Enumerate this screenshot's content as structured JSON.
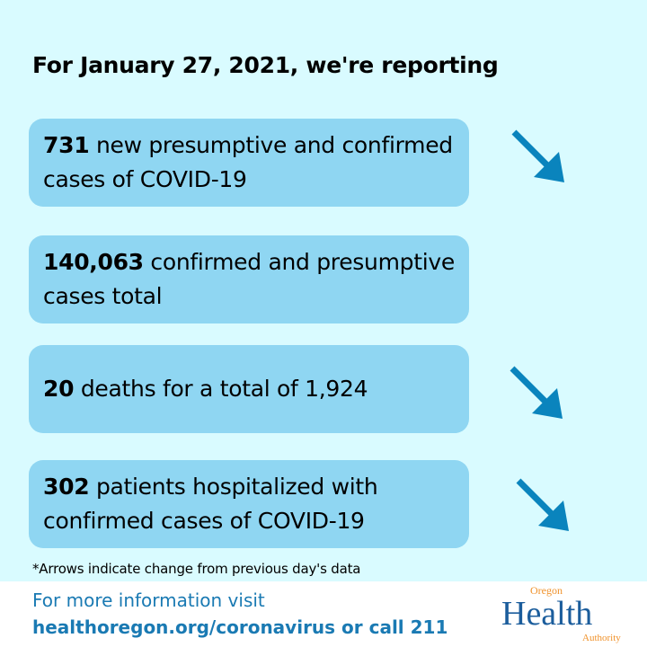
{
  "title": "For January 27, 2021, we're reporting",
  "stats": [
    {
      "number": "731",
      "text": " new presumptive and confirmed cases of COVID-19",
      "arrow": "down"
    },
    {
      "number": "140,063",
      "text": " confirmed and presumptive cases total",
      "arrow": "none"
    },
    {
      "number": "20",
      "text": " deaths for a total of 1,924",
      "arrow": "down"
    },
    {
      "number": "302",
      "text": " patients hospitalized with confirmed cases of COVID-19",
      "arrow": "down"
    }
  ],
  "note": "*Arrows indicate change from previous day's data",
  "footer": {
    "line1": "For more information visit",
    "line2": "healthoregon.org/coronavirus or call 211"
  },
  "logo": {
    "top": "Oregon",
    "main": "Health",
    "bottom": "Authority"
  },
  "colors": {
    "background": "#d9fbff",
    "box": "#8fd6f2",
    "arrow": "#0a84bd",
    "footer_text": "#1a7ab3"
  }
}
